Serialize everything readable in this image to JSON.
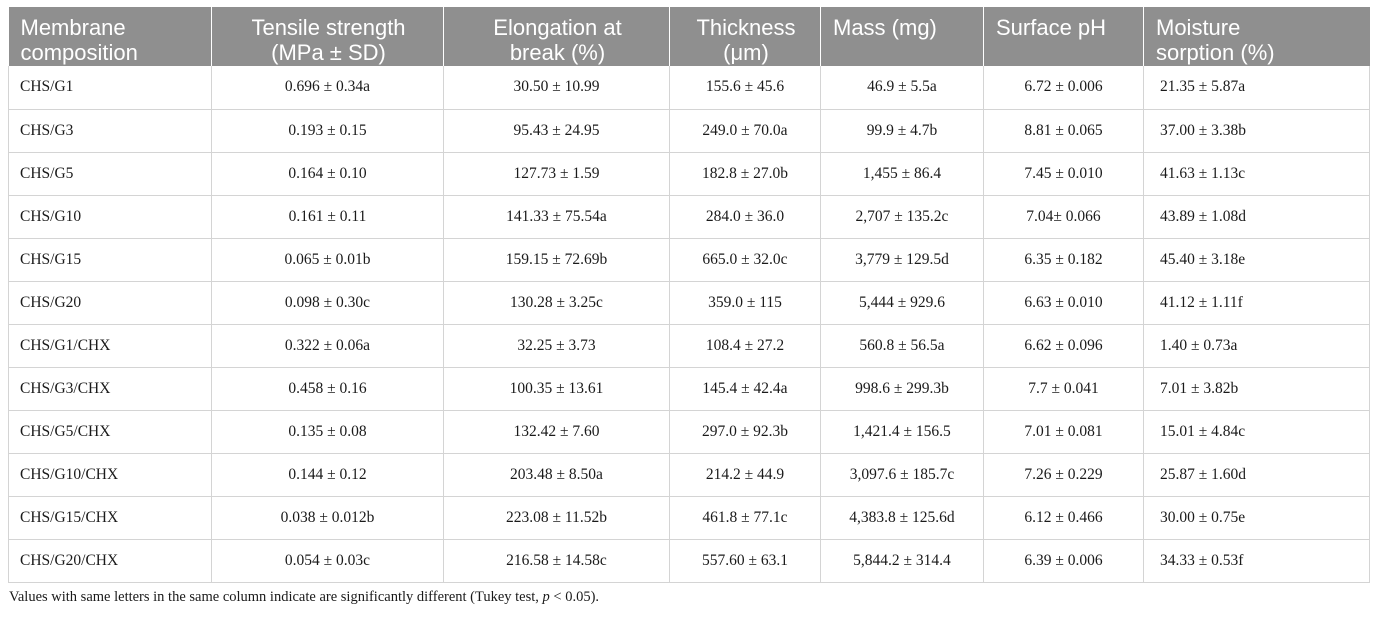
{
  "table": {
    "headers": [
      {
        "line1": "Membrane",
        "line2": "composition"
      },
      {
        "line1": "Tensile strength",
        "line2": "(MPa ± SD)"
      },
      {
        "line1": "Elongation at",
        "line2": "break (%)"
      },
      {
        "line1": "Thickness",
        "line2": "(μm)"
      },
      {
        "line1": "Mass (mg)",
        "line2": ""
      },
      {
        "line1": "Surface pH",
        "line2": ""
      },
      {
        "line1": "Moisture",
        "line2": "sorption (%)"
      }
    ],
    "rows": [
      [
        "CHS/G1",
        "0.696 ± 0.34a",
        "30.50 ± 10.99",
        "155.6 ± 45.6",
        "46.9 ± 5.5a",
        "6.72 ± 0.006",
        "21.35 ± 5.87a"
      ],
      [
        "CHS/G3",
        "0.193 ± 0.15",
        "95.43 ± 24.95",
        "249.0 ± 70.0a",
        "99.9 ± 4.7b",
        "8.81 ± 0.065",
        "37.00 ± 3.38b"
      ],
      [
        "CHS/G5",
        "0.164 ± 0.10",
        "127.73 ± 1.59",
        "182.8 ± 27.0b",
        "1,455 ± 86.4",
        "7.45 ± 0.010",
        "41.63 ± 1.13c"
      ],
      [
        "CHS/G10",
        "0.161 ± 0.11",
        "141.33 ± 75.54a",
        "284.0 ± 36.0",
        "2,707 ± 135.2c",
        "7.04± 0.066",
        "43.89 ± 1.08d"
      ],
      [
        "CHS/G15",
        "0.065 ± 0.01b",
        "159.15 ± 72.69b",
        "665.0 ± 32.0c",
        "3,779 ± 129.5d",
        "6.35 ± 0.182",
        "45.40 ± 3.18e"
      ],
      [
        "CHS/G20",
        "0.098 ± 0.30c",
        "130.28 ± 3.25c",
        "359.0 ± 115",
        "5,444 ± 929.6",
        "6.63 ± 0.010",
        "41.12 ± 1.11f"
      ],
      [
        "CHS/G1/CHX",
        "0.322 ± 0.06a",
        "32.25 ± 3.73",
        "108.4 ± 27.2",
        "560.8 ± 56.5a",
        "6.62 ± 0.096",
        "1.40 ± 0.73a"
      ],
      [
        "CHS/G3/CHX",
        "0.458 ± 0.16",
        "100.35 ± 13.61",
        "145.4 ± 42.4a",
        "998.6 ± 299.3b",
        "7.7 ± 0.041",
        "7.01 ± 3.82b"
      ],
      [
        "CHS/G5/CHX",
        "0.135 ± 0.08",
        "132.42 ± 7.60",
        "297.0 ± 92.3b",
        "1,421.4 ± 156.5",
        "7.01 ± 0.081",
        "15.01 ± 4.84c"
      ],
      [
        "CHS/G10/CHX",
        "0.144 ± 0.12",
        "203.48 ± 8.50a",
        "214.2 ± 44.9",
        "3,097.6 ± 185.7c",
        "7.26 ± 0.229",
        "25.87 ± 1.60d"
      ],
      [
        "CHS/G15/CHX",
        "0.038 ± 0.012b",
        "223.08 ± 11.52b",
        "461.8 ± 77.1c",
        "4,383.8 ± 125.6d",
        "6.12 ± 0.466",
        "30.00 ± 0.75e"
      ],
      [
        "CHS/G20/CHX",
        "0.054 ± 0.03c",
        "216.58 ± 14.58c",
        "557.60 ± 63.1",
        "5,844.2 ± 314.4",
        "6.39 ± 0.006",
        "34.33 ± 0.53f"
      ]
    ]
  },
  "footnote": {
    "prefix": "Values with same letters in the same column indicate are significantly different (Tukey test, ",
    "italic": "p",
    "suffix": " < 0.05)."
  }
}
